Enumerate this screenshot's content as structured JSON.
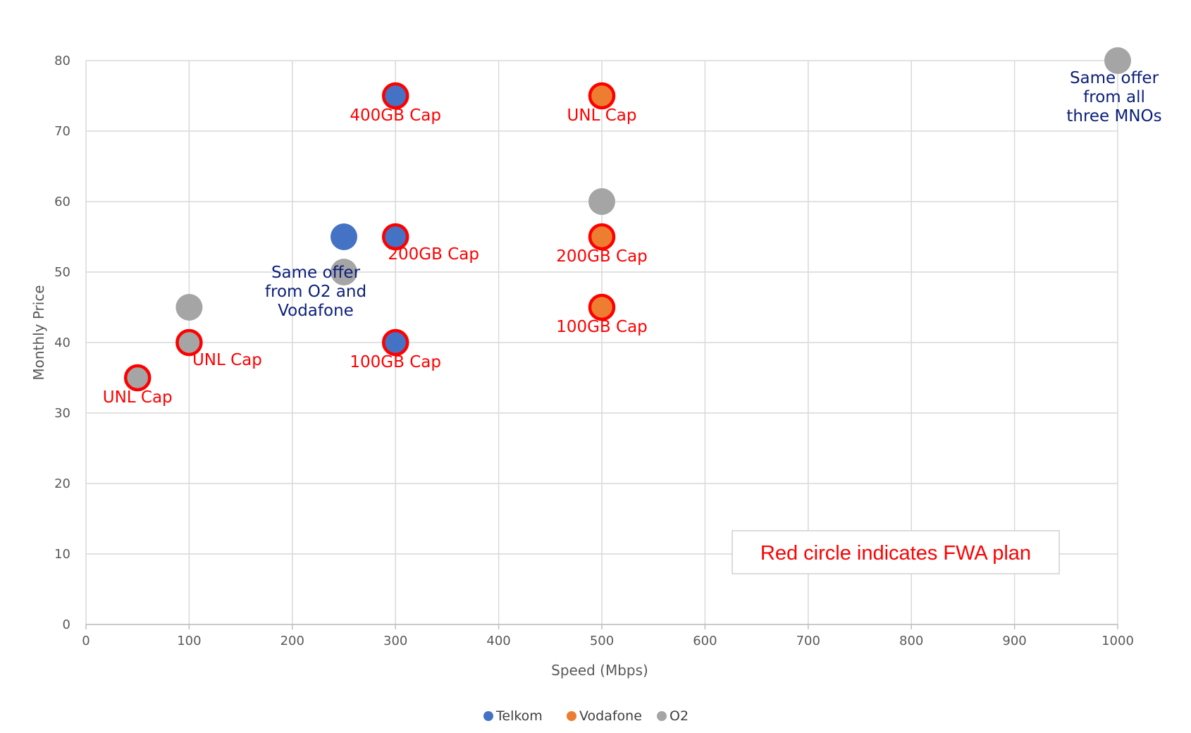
{
  "chart_data": {
    "type": "scatter",
    "title": "",
    "xlabel": "Speed (Mbps)",
    "ylabel": "Monthly Price",
    "xlim": [
      0,
      1000
    ],
    "ylim": [
      0,
      80
    ],
    "xticks": [
      0,
      100,
      200,
      300,
      400,
      500,
      600,
      700,
      800,
      900,
      1000
    ],
    "yticks": [
      0,
      10,
      20,
      30,
      40,
      50,
      60,
      70,
      80
    ],
    "grid": true,
    "legend_position": "bottom",
    "series": [
      {
        "name": "Telkom",
        "color": "#4472c4",
        "points": [
          {
            "x": 300,
            "y": 75,
            "fwa": true
          },
          {
            "x": 250,
            "y": 55,
            "fwa": false
          },
          {
            "x": 300,
            "y": 55,
            "fwa": true
          },
          {
            "x": 300,
            "y": 40,
            "fwa": true
          }
        ]
      },
      {
        "name": "Vodafone",
        "color": "#ed7d31",
        "points": [
          {
            "x": 500,
            "y": 75,
            "fwa": true
          },
          {
            "x": 500,
            "y": 55,
            "fwa": true
          },
          {
            "x": 500,
            "y": 45,
            "fwa": true
          }
        ]
      },
      {
        "name": "O2",
        "color": "#a5a5a5",
        "points": [
          {
            "x": 1000,
            "y": 80,
            "fwa": false
          },
          {
            "x": 500,
            "y": 60,
            "fwa": false
          },
          {
            "x": 250,
            "y": 50,
            "fwa": false
          },
          {
            "x": 100,
            "y": 45,
            "fwa": false
          },
          {
            "x": 100,
            "y": 40,
            "fwa": true
          },
          {
            "x": 50,
            "y": 35,
            "fwa": true
          }
        ]
      }
    ],
    "fwa_ring_color": "#ff0000",
    "annotations": [
      {
        "text": "400GB Cap",
        "x": 300,
        "y": 75,
        "color": "red",
        "place": "below"
      },
      {
        "text": "UNL Cap",
        "x": 500,
        "y": 75,
        "color": "red",
        "place": "below"
      },
      {
        "text": "200GB Cap",
        "x": 300,
        "y": 55,
        "color": "red",
        "place": "right-below"
      },
      {
        "text": "200GB Cap",
        "x": 500,
        "y": 55,
        "color": "red",
        "place": "below"
      },
      {
        "text": "100GB Cap",
        "x": 500,
        "y": 45,
        "color": "red",
        "place": "below"
      },
      {
        "text": "100GB Cap",
        "x": 300,
        "y": 40,
        "color": "red",
        "place": "below"
      },
      {
        "text": "UNL Cap",
        "x": 100,
        "y": 40,
        "color": "red",
        "place": "right-below"
      },
      {
        "text": "UNL Cap",
        "x": 50,
        "y": 35,
        "color": "red",
        "place": "below"
      },
      {
        "lines": [
          "Same offer",
          "from all",
          "three MNOs"
        ],
        "x": 1000,
        "y": 80,
        "color": "navy",
        "place": "below"
      },
      {
        "lines": [
          "Same offer",
          "from O2 and",
          "Vodafone"
        ],
        "x": 250,
        "y": 50,
        "color": "navy",
        "place": "left-at"
      }
    ],
    "note": "Red circle indicates FWA plan"
  }
}
